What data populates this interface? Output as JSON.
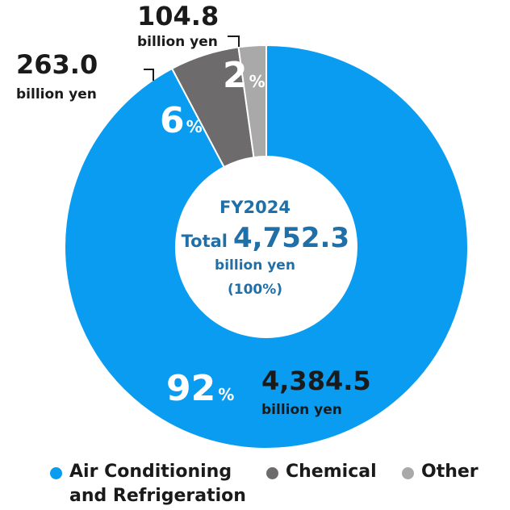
{
  "chart_data": {
    "type": "pie",
    "center": {
      "fy": "FY2024",
      "total_prefix": "Total",
      "total_value": "4,752.3",
      "unit": "billion yen",
      "share": "(100%)"
    },
    "segments": [
      {
        "name": "Air Conditioning and Refrigeration",
        "legend_lines": [
          "Air Conditioning",
          "and Refrigeration"
        ],
        "value": 4384.5,
        "value_label": "4,384.5",
        "unit": "billion yen",
        "percent": 92,
        "percent_label": "92",
        "color": "#0a9cf0"
      },
      {
        "name": "Chemical",
        "legend_lines": [
          "Chemical"
        ],
        "value": 263.0,
        "value_label": "263.0",
        "unit": "billion yen",
        "percent": 6,
        "percent_label": "6",
        "color": "#6d6b6b"
      },
      {
        "name": "Other",
        "legend_lines": [
          "Other"
        ],
        "value": 104.8,
        "value_label": "104.8",
        "unit": "billion yen",
        "percent": 2,
        "percent_label": "2",
        "color": "#a9a9a9"
      }
    ],
    "percent_sign": "%"
  }
}
